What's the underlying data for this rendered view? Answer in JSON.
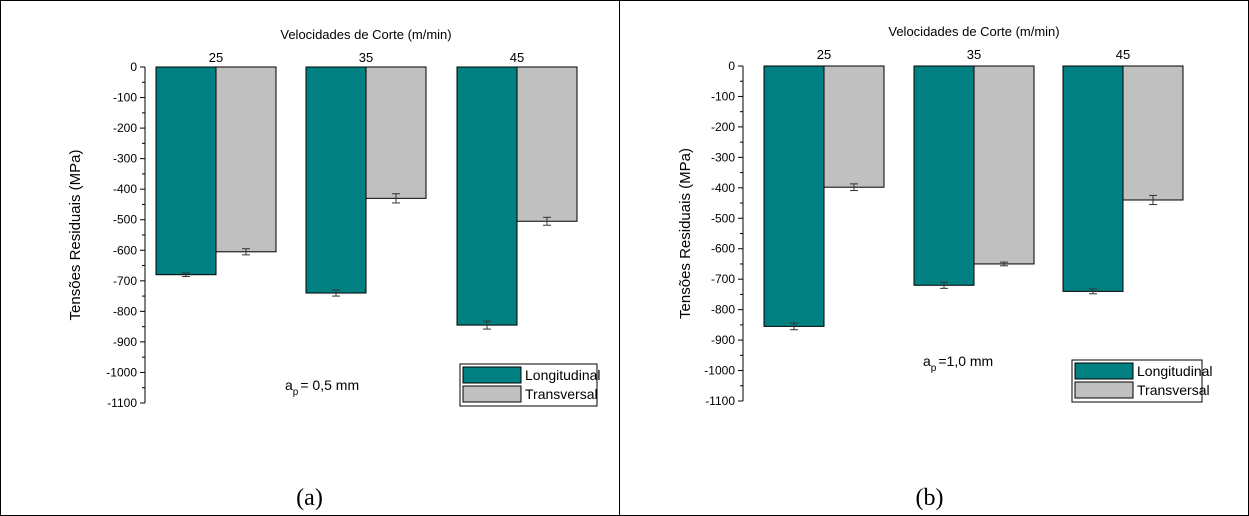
{
  "colors": {
    "longitudinal": "#008080",
    "transversal": "#c0c0c0",
    "axis": "#000000"
  },
  "chart_data": [
    {
      "type": "bar",
      "panel_label": "(a)",
      "xlabel_top": "Velocidades de Corte (m/min)",
      "ylabel": "Tensões Residuais (MPa)",
      "categories": [
        "25",
        "35",
        "45"
      ],
      "ylim": [
        -1100,
        0
      ],
      "yticks": [
        0,
        -100,
        -200,
        -300,
        -400,
        -500,
        -600,
        -700,
        -800,
        -900,
        -1000,
        -1100
      ],
      "annotation": {
        "main": "a",
        "sub": "p",
        "rest": "= 0,5 mm"
      },
      "legend_position": "bottom-right",
      "series": [
        {
          "name": "Longitudinal",
          "values": [
            -680,
            -740,
            -845
          ],
          "errors": [
            6,
            10,
            13
          ]
        },
        {
          "name": "Transversal",
          "values": [
            -605,
            -430,
            -505
          ],
          "errors": [
            10,
            15,
            13
          ]
        }
      ]
    },
    {
      "type": "bar",
      "panel_label": "(b)",
      "xlabel_top": "Velocidades de Corte (m/min)",
      "ylabel": "Tensões Residuais (MPa)",
      "categories": [
        "25",
        "35",
        "45"
      ],
      "ylim": [
        -1100,
        0
      ],
      "yticks": [
        0,
        -100,
        -200,
        -300,
        -400,
        -500,
        -600,
        -700,
        -800,
        -900,
        -1000,
        -1100
      ],
      "annotation": {
        "main": "a",
        "sub": "p",
        "rest": "=1,0 mm"
      },
      "legend_position": "bottom-right",
      "series": [
        {
          "name": "Longitudinal",
          "values": [
            -855,
            -720,
            -740
          ],
          "errors": [
            11,
            10,
            8
          ]
        },
        {
          "name": "Transversal",
          "values": [
            -398,
            -650,
            -440
          ],
          "errors": [
            11,
            6,
            15
          ]
        }
      ]
    }
  ]
}
